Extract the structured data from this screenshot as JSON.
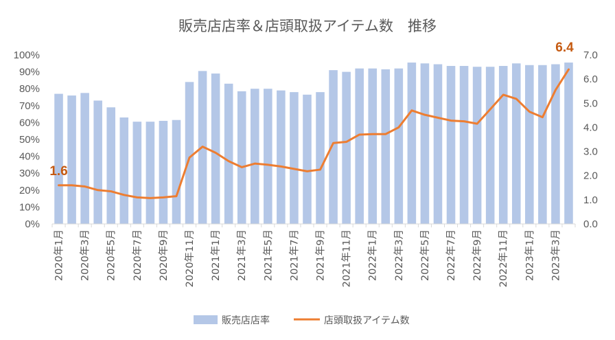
{
  "chart_data": {
    "type": "bar",
    "title": "販売店店率＆店頭取扱アイテム数　推移",
    "categories": [
      "2020年1月",
      "2020年2月",
      "2020年3月",
      "2020年4月",
      "2020年5月",
      "2020年6月",
      "2020年7月",
      "2020年8月",
      "2020年9月",
      "2020年10月",
      "2020年11月",
      "2020年12月",
      "2021年1月",
      "2021年2月",
      "2021年3月",
      "2021年4月",
      "2021年5月",
      "2021年6月",
      "2021年7月",
      "2021年8月",
      "2021年9月",
      "2021年10月",
      "2021年11月",
      "2021年12月",
      "2022年1月",
      "2022年2月",
      "2022年3月",
      "2022年4月",
      "2022年5月",
      "2022年6月",
      "2022年7月",
      "2022年8月",
      "2022年9月",
      "2022年10月",
      "2022年11月",
      "2022年12月",
      "2023年1月",
      "2023年2月",
      "2023年3月",
      "2023年4月"
    ],
    "x_tick_labels": [
      "2020年1月",
      "2020年3月",
      "2020年5月",
      "2020年7月",
      "2020年9月",
      "2020年11月",
      "2021年1月",
      "2021年3月",
      "2021年5月",
      "2021年7月",
      "2021年9月",
      "2021年11月",
      "2022年1月",
      "2022年3月",
      "2022年5月",
      "2022年7月",
      "2022年9月",
      "2022年11月",
      "2023年1月",
      "2023年3月"
    ],
    "series": [
      {
        "name": "販売店店率",
        "type": "bar",
        "axis": "left",
        "color": "#b4c7e7",
        "values": [
          0.77,
          0.76,
          0.775,
          0.73,
          0.69,
          0.63,
          0.605,
          0.605,
          0.61,
          0.615,
          0.84,
          0.905,
          0.89,
          0.83,
          0.785,
          0.8,
          0.8,
          0.79,
          0.78,
          0.765,
          0.78,
          0.91,
          0.9,
          0.92,
          0.92,
          0.915,
          0.92,
          0.955,
          0.95,
          0.945,
          0.935,
          0.935,
          0.93,
          0.93,
          0.935,
          0.95,
          0.94,
          0.94,
          0.945,
          0.955
        ]
      },
      {
        "name": "店頭取扱アイテム数",
        "type": "line",
        "axis": "right",
        "color": "#ed7d31",
        "values": [
          1.6,
          1.6,
          1.55,
          1.4,
          1.35,
          1.2,
          1.1,
          1.07,
          1.1,
          1.15,
          2.75,
          3.2,
          2.95,
          2.6,
          2.35,
          2.5,
          2.45,
          2.38,
          2.28,
          2.18,
          2.25,
          3.35,
          3.4,
          3.7,
          3.72,
          3.72,
          4.0,
          4.7,
          4.52,
          4.4,
          4.28,
          4.25,
          4.15,
          4.75,
          5.35,
          5.18,
          4.65,
          4.42,
          5.55,
          6.4
        ]
      }
    ],
    "data_labels": [
      "1.6",
      "6.4"
    ],
    "y_left": {
      "ylim": [
        0,
        1.0
      ],
      "tick_labels": [
        "0%",
        "10%",
        "20%",
        "30%",
        "40%",
        "50%",
        "60%",
        "70%",
        "80%",
        "90%",
        "100%"
      ]
    },
    "y_right": {
      "ylim": [
        0,
        7.0
      ],
      "tick_labels": [
        "0.0",
        "1.0",
        "2.0",
        "3.0",
        "4.0",
        "5.0",
        "6.0",
        "7.0"
      ]
    },
    "grid": false,
    "legend": {
      "position": "bottom",
      "entries": [
        "販売店店率",
        "店頭取扱アイテム数"
      ]
    }
  }
}
